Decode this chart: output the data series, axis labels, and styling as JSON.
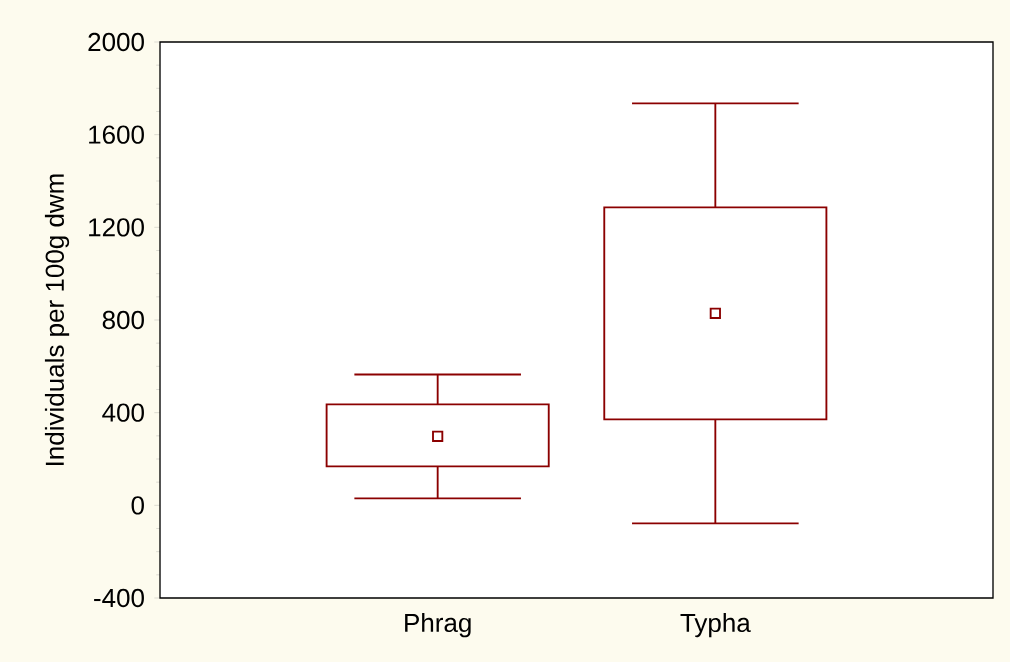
{
  "chart_data": {
    "type": "box",
    "ylabel": "Individuals per 100g dwm",
    "categories": [
      "Phrag",
      "Typha"
    ],
    "series": [
      {
        "color": "#8b0000",
        "boxes": [
          {
            "low": 30,
            "q1": 168,
            "median": 298,
            "q3": 436,
            "high": 565
          },
          {
            "low": -78,
            "q1": 371,
            "median": 829,
            "q3": 1286,
            "high": 1735
          }
        ]
      }
    ],
    "ylim": [
      -400,
      2000
    ],
    "yticks": [
      -400,
      0,
      400,
      800,
      1200,
      1600,
      2000
    ],
    "grid": false,
    "marker": "square"
  }
}
